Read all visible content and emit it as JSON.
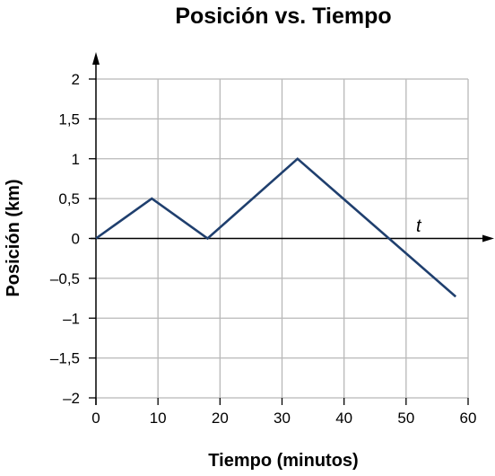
{
  "chart_data": {
    "type": "line",
    "title": "Posición vs. Tiempo",
    "xlabel": "Tiempo (minutos)",
    "ylabel": "Posición (km)",
    "axis_var": "t",
    "xlim": [
      0,
      60
    ],
    "ylim": [
      -2,
      2
    ],
    "x_ticks": [
      0,
      10,
      20,
      30,
      40,
      50,
      60
    ],
    "x_tick_labels": [
      "0",
      "10",
      "20",
      "30",
      "40",
      "50",
      "60"
    ],
    "y_ticks": [
      2,
      1.5,
      1,
      0.5,
      0,
      -0.5,
      -1,
      -1.5,
      -2
    ],
    "y_tick_labels": [
      "2",
      "1,5",
      "1",
      "0,5",
      "0",
      "–0,5",
      "–1",
      "–1,5",
      "–2"
    ],
    "grid": true,
    "series": [
      {
        "color": "#1f3f6e",
        "points": [
          {
            "x": 0,
            "y": 0
          },
          {
            "x": 9,
            "y": 0.5
          },
          {
            "x": 18,
            "y": 0
          },
          {
            "x": 32.5,
            "y": 1
          },
          {
            "x": 58,
            "y": -0.73
          }
        ]
      }
    ]
  }
}
